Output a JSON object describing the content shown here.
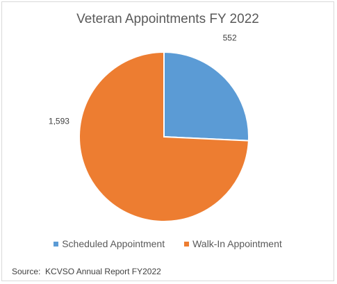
{
  "chart_data": {
    "type": "pie",
    "title": "Veteran Appointments FY 2022",
    "categories": [
      "Scheduled Appointment",
      "Walk-In Appointment"
    ],
    "values": [
      552,
      1593
    ],
    "data_labels": [
      "552",
      "1,593"
    ],
    "colors": [
      "#5b9bd5",
      "#ed7d31"
    ],
    "legend": "bottom",
    "source": "Source:  KCVSO Annual Report FY2022"
  }
}
